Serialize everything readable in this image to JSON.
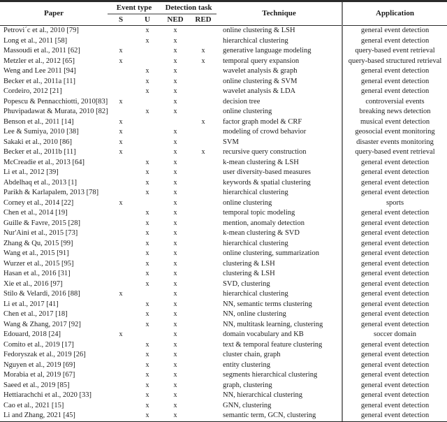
{
  "table": {
    "headers": {
      "paper": "Paper",
      "event_type_group": "Event type",
      "detection_task_group": "Detection task",
      "s": "S",
      "u": "U",
      "ned": "NED",
      "red": "RED",
      "technique": "Technique",
      "application": "Application"
    },
    "mark": "x",
    "rows": [
      {
        "paper": "Petrovi´c et al., 2010 [79]",
        "s": "",
        "u": "x",
        "ned": "x",
        "red": "",
        "technique": "online clustering & LSH",
        "application": "general event detection"
      },
      {
        "paper": "Long et al., 2011 [58]",
        "s": "",
        "u": "x",
        "ned": "x",
        "red": "",
        "technique": "hierarchical clustering",
        "application": "general event detection"
      },
      {
        "paper": "Massoudi et al., 2011 [62]",
        "s": "x",
        "u": "",
        "ned": "x",
        "red": "x",
        "technique": "generative language modeling",
        "application": "query-based event retrieval"
      },
      {
        "paper": "Metzler et al., 2012 [65]",
        "s": "x",
        "u": "",
        "ned": "x",
        "red": "x",
        "technique": "temporal query expansion",
        "application": "query-based structured retrieval"
      },
      {
        "paper": "Weng and Lee 2011 [94]",
        "s": "",
        "u": "x",
        "ned": "x",
        "red": "",
        "technique": "wavelet analysis & graph",
        "application": "general event detection"
      },
      {
        "paper": "Becker et al., 2011a [11]",
        "s": "",
        "u": "x",
        "ned": "x",
        "red": "",
        "technique": "online clustering & SVM",
        "application": "general event detection"
      },
      {
        "paper": "Cordeiro, 2012 [21]",
        "s": "",
        "u": "x",
        "ned": "x",
        "red": "",
        "technique": "wavelet analysis & LDA",
        "application": "general event detection"
      },
      {
        "paper": "Popescu & Pennacchiotti, 2010[83]",
        "s": "x",
        "u": "",
        "ned": "x",
        "red": "",
        "technique": "decision tree",
        "application": "controversial events"
      },
      {
        "paper": "Phuvipadawat & Murata, 2010 [82]",
        "s": "",
        "u": "x",
        "ned": "x",
        "red": "",
        "technique": "online clustering",
        "application": "breaking news detection"
      },
      {
        "paper": "Benson et al., 2011 [14]",
        "s": "x",
        "u": "",
        "ned": "",
        "red": "x",
        "technique": "factor graph model & CRF",
        "application": "musical event detection"
      },
      {
        "paper": "Lee & Sumiya, 2010 [38]",
        "s": "x",
        "u": "",
        "ned": "x",
        "red": "",
        "technique": "modeling of crowd behavior",
        "application": "geosocial event monitoring"
      },
      {
        "paper": "Sakaki et al., 2010 [86]",
        "s": "x",
        "u": "",
        "ned": "x",
        "red": "",
        "technique": "SVM",
        "application": "disaster events monitoring"
      },
      {
        "paper": "Becker et al., 2011b [11]",
        "s": "x",
        "u": "",
        "ned": "x",
        "red": "x",
        "technique": "recursive query construction",
        "application": "query-based event retrieval"
      },
      {
        "paper": "McCreadie et al., 2013 [64]",
        "s": "",
        "u": "x",
        "ned": "x",
        "red": "",
        "technique": "k-mean clustering & LSH",
        "application": "general event detection"
      },
      {
        "paper": "Li et al., 2012 [39]",
        "s": "",
        "u": "x",
        "ned": "x",
        "red": "",
        "technique": "user diversity-based measures",
        "application": "general event detection"
      },
      {
        "paper": "Abdelhaq et al., 2013 [1]",
        "s": "",
        "u": "x",
        "ned": "x",
        "red": "",
        "technique": "keywords & spatial clustering",
        "application": "general event detection"
      },
      {
        "paper": "Parikh & Karlapalem, 2013 [78]",
        "s": "",
        "u": "x",
        "ned": "x",
        "red": "",
        "technique": "hierarchical clustering",
        "application": "general event detection"
      },
      {
        "paper": "Corney et al., 2014 [22]",
        "s": "x",
        "u": "",
        "ned": "x",
        "red": "",
        "technique": "online clustering",
        "application": "sports"
      },
      {
        "paper": "Chen et al., 2014 [19]",
        "s": "",
        "u": "x",
        "ned": "x",
        "red": "",
        "technique": "temporal topic modeling",
        "application": "general event detection"
      },
      {
        "paper": "Guille & Favre, 2015 [28]",
        "s": "",
        "u": "x",
        "ned": "x",
        "red": "",
        "technique": "mention, anomaly detection",
        "application": "general event detection"
      },
      {
        "paper": "Nur'Aini et al., 2015 [73]",
        "s": "",
        "u": "x",
        "ned": "x",
        "red": "",
        "technique": "k-mean clustering & SVD",
        "application": "general event detection"
      },
      {
        "paper": "Zhang & Qu, 2015 [99]",
        "s": "",
        "u": "x",
        "ned": "x",
        "red": "",
        "technique": "hierarchical clustering",
        "application": "general event detection"
      },
      {
        "paper": "Wang et al., 2015 [91]",
        "s": "",
        "u": "x",
        "ned": "x",
        "red": "",
        "technique": "online clustering, summarization",
        "application": "general event detection"
      },
      {
        "paper": "Wurzer et al., 2015 [95]",
        "s": "",
        "u": "x",
        "ned": "x",
        "red": "",
        "technique": "clustering & LSH",
        "application": "general event detection"
      },
      {
        "paper": "Hasan et al., 2016 [31]",
        "s": "",
        "u": "x",
        "ned": "x",
        "red": "",
        "technique": "clustering & LSH",
        "application": "general event detection"
      },
      {
        "paper": "Xie et al., 2016 [97]",
        "s": "",
        "u": "x",
        "ned": "x",
        "red": "",
        "technique": "SVD, clustering",
        "application": "general event detection"
      },
      {
        "paper": "Stilo & Velardi, 2016 [88]",
        "s": "x",
        "u": "",
        "ned": "x",
        "red": "",
        "technique": "hierarchical clustering",
        "application": "general event detection"
      },
      {
        "paper": "Li et al., 2017 [41]",
        "s": "",
        "u": "x",
        "ned": "x",
        "red": "",
        "technique": "NN, semantic terms clustering",
        "application": "general event detection"
      },
      {
        "paper": "Chen et al., 2017 [18]",
        "s": "",
        "u": "x",
        "ned": "x",
        "red": "",
        "technique": "NN, online clustering",
        "application": "general event detection"
      },
      {
        "paper": "Wang & Zhang, 2017 [92]",
        "s": "",
        "u": "x",
        "ned": "x",
        "red": "",
        "technique": "NN, multitask learning, clustering",
        "application": "general event detection"
      },
      {
        "paper": "Edouard, 2018 [24]",
        "s": "x",
        "u": "",
        "ned": "x",
        "red": "",
        "technique": "domain vocabulary and KB",
        "application": "soccer domain"
      },
      {
        "paper": "Comito et al., 2019 [17]",
        "s": "",
        "u": "x",
        "ned": "x",
        "red": "",
        "technique": "text & temporal feature clustering",
        "application": "general event detection"
      },
      {
        "paper": "Fedoryszak et al., 2019 [26]",
        "s": "",
        "u": "x",
        "ned": "x",
        "red": "",
        "technique": "cluster chain, graph",
        "application": "general event detection"
      },
      {
        "paper": "Nguyen et al., 2019 [69]",
        "s": "",
        "u": "x",
        "ned": "x",
        "red": "",
        "technique": "entity clustering",
        "application": "general event detection"
      },
      {
        "paper": "Morabia et al, 2019 [67]",
        "s": "",
        "u": "x",
        "ned": "x",
        "red": "",
        "technique": "segments hierarchical clustering",
        "application": "general event detection"
      },
      {
        "paper": "Saeed et al., 2019 [85]",
        "s": "",
        "u": "x",
        "ned": "x",
        "red": "",
        "technique": "graph, clustering",
        "application": "general event detection"
      },
      {
        "paper": "Hettiarachchi et al., 2020 [33]",
        "s": "",
        "u": "x",
        "ned": "x",
        "red": "",
        "technique": "NN, hierarchical clustering",
        "application": "general event detection"
      },
      {
        "paper": "Cao et al., 2021 [15]",
        "s": "",
        "u": "x",
        "ned": "x",
        "red": "",
        "technique": "GNN, clustering",
        "application": "general event detection"
      },
      {
        "paper": "Li and Zhang, 2021 [45]",
        "s": "",
        "u": "x",
        "ned": "x",
        "red": "",
        "technique": "semantic term, GCN, clustering",
        "application": "general event detection"
      }
    ]
  }
}
